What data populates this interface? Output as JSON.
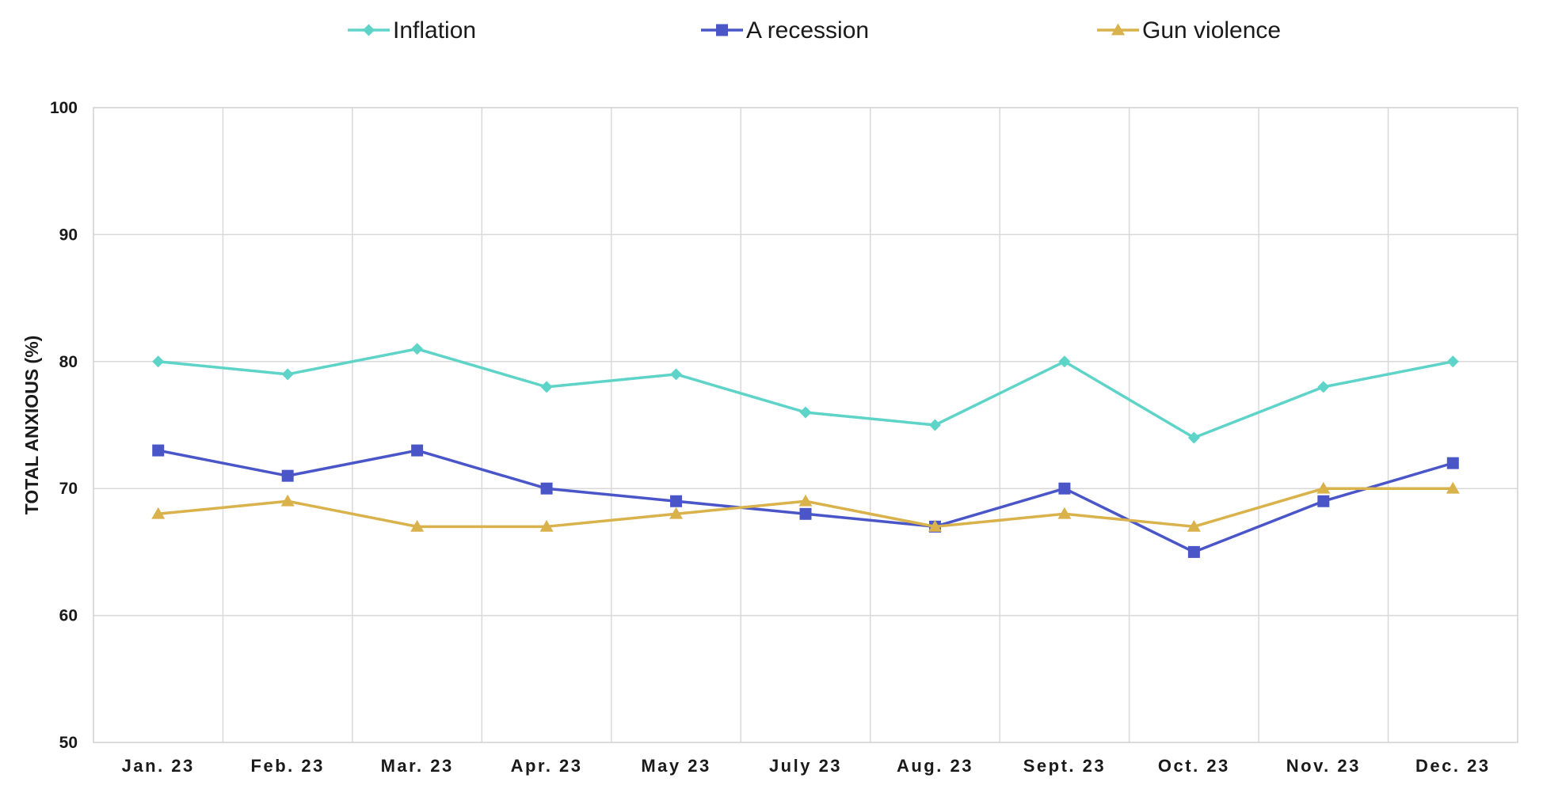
{
  "chart_data": {
    "type": "line",
    "title": "",
    "xlabel": "",
    "ylabel": "TOTAL ANXIOUS (%)",
    "ylim": [
      50,
      100
    ],
    "yticks": [
      50,
      60,
      70,
      80,
      90,
      100
    ],
    "grid": true,
    "legend_position": "top",
    "categories": [
      "Jan. 23",
      "Feb. 23",
      "Mar. 23",
      "Apr. 23",
      "May 23",
      "July 23",
      "Aug. 23",
      "Sept. 23",
      "Oct. 23",
      "Nov. 23",
      "Dec. 23"
    ],
    "series": [
      {
        "name": "Inflation",
        "color": "#5ed3c8",
        "marker": "diamond",
        "values": [
          80,
          79,
          81,
          78,
          79,
          76,
          75,
          80,
          74,
          78,
          80
        ]
      },
      {
        "name": "A recession",
        "color": "#4a56c8",
        "marker": "square",
        "values": [
          73,
          71,
          73,
          70,
          69,
          68,
          67,
          70,
          65,
          69,
          72
        ]
      },
      {
        "name": "Gun violence",
        "color": "#d9b24c",
        "marker": "triangle",
        "values": [
          68,
          69,
          67,
          67,
          68,
          69,
          67,
          68,
          67,
          70,
          70
        ]
      }
    ]
  }
}
